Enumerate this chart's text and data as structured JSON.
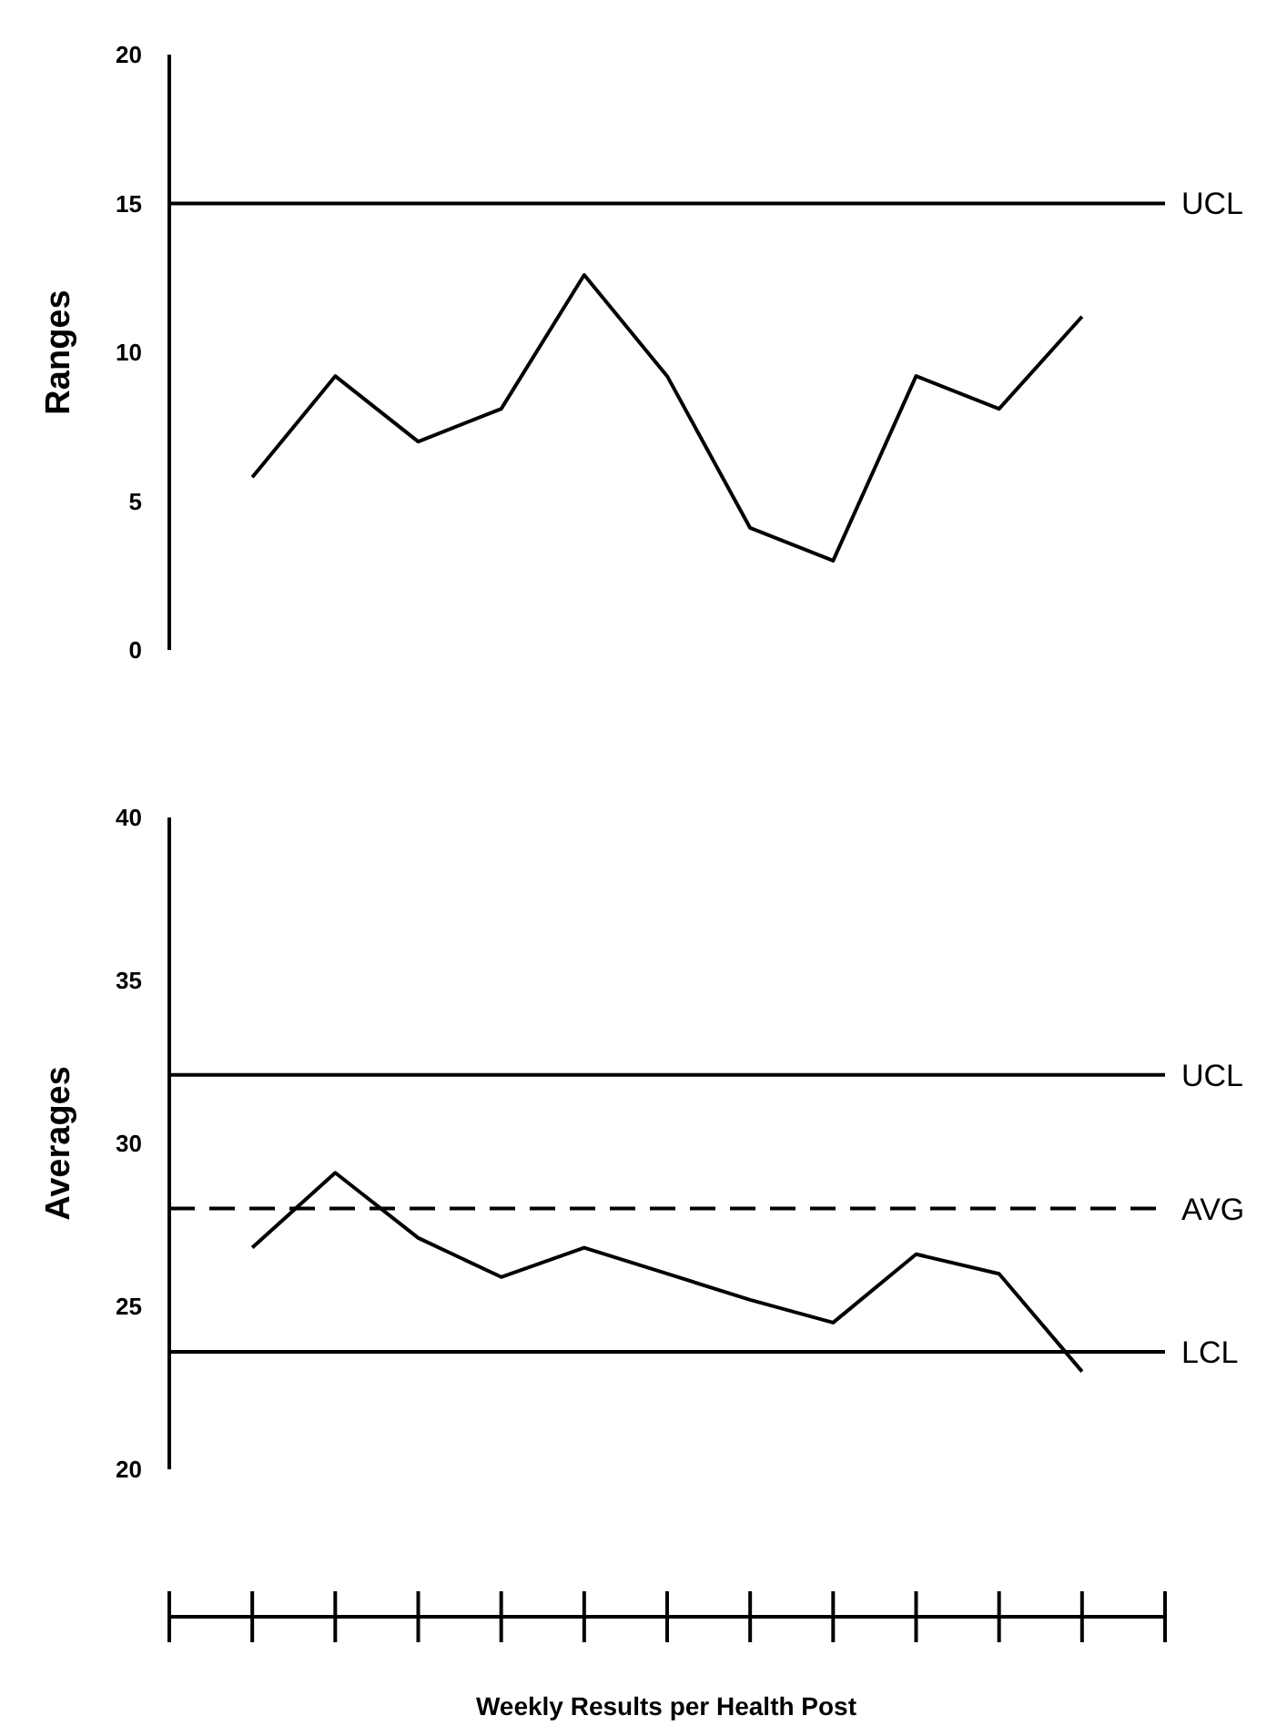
{
  "chart_data": [
    {
      "type": "line",
      "ylabel": "Ranges",
      "categories": [
        null,
        null,
        null,
        null,
        null,
        null,
        null,
        null,
        null,
        null,
        null,
        null,
        null
      ],
      "series": [
        {
          "color": "#000000",
          "values": [
            null,
            5.8,
            9.2,
            7.0,
            8.1,
            12.6,
            9.2,
            4.1,
            3.0,
            9.2,
            8.1,
            11.2,
            null
          ]
        }
      ],
      "ylim": [
        0,
        20
      ],
      "yticks": [
        0,
        5,
        10,
        15,
        20
      ],
      "tick_labels": "y",
      "grid": false,
      "marker": "none",
      "line_style": "solid",
      "ref_lines": [
        {
          "axis": "y",
          "value": 15,
          "label": "UCL",
          "color": "#000000",
          "line_style": "solid"
        }
      ]
    },
    {
      "type": "line",
      "ylabel": "Averages",
      "xlabel": "Weekly Results per Health Post",
      "categories": [
        null,
        null,
        null,
        null,
        null,
        null,
        null,
        null,
        null,
        null,
        null,
        null,
        null
      ],
      "series": [
        {
          "color": "#000000",
          "values": [
            null,
            26.8,
            29.1,
            27.1,
            25.9,
            26.8,
            26.0,
            25.2,
            24.5,
            26.6,
            26.0,
            23.0,
            null
          ]
        }
      ],
      "ylim": [
        20,
        40
      ],
      "yticks": [
        20,
        25,
        30,
        35,
        40
      ],
      "tick_labels": "y",
      "grid": false,
      "marker": "none",
      "line_style": "solid",
      "ref_lines": [
        {
          "axis": "y",
          "value": 32.1,
          "label": "UCL",
          "color": "#000000",
          "line_style": "solid"
        },
        {
          "axis": "y",
          "value": 28,
          "label": "AVG",
          "color": "#000000",
          "line_style": "dashed"
        },
        {
          "axis": "y",
          "value": 23.6,
          "label": "LCL",
          "color": "#000000",
          "line_style": "solid"
        }
      ]
    }
  ]
}
